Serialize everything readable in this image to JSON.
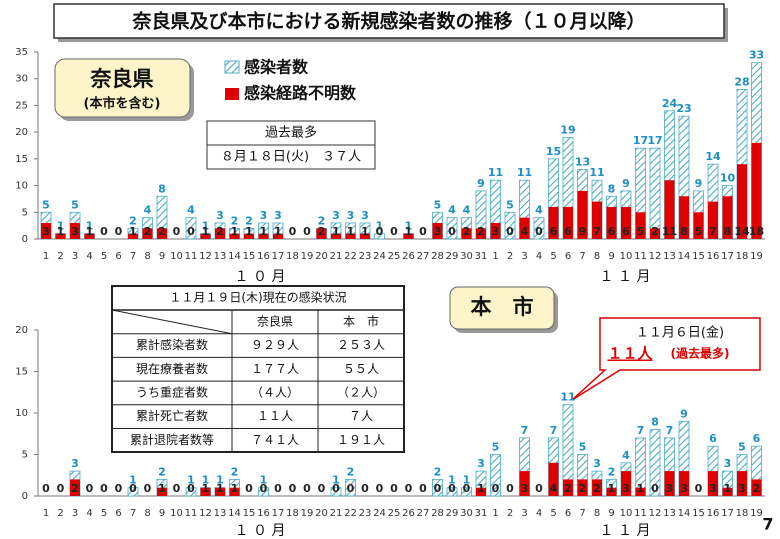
{
  "title": "奈良県及び本市における新規感染者数の推移（１０月以降）",
  "page_number": "7",
  "record_box": {
    "heading": "過去最多",
    "value": "８月１８日(火)　３７人"
  },
  "callout": {
    "date": "１１月６日(金)",
    "count": "１１人",
    "note": "(過去最多)"
  },
  "table": {
    "heading": "１１月１９日(木)現在の感染状況",
    "columns": [
      "奈良県",
      "本　市"
    ],
    "rows": [
      [
        "累計感染者数",
        "９２９人",
        "２５３人"
      ],
      [
        "現在療養者数",
        "１７７人",
        "５５人"
      ],
      [
        "うち重症者数",
        "（４人）",
        "（２人）"
      ],
      [
        "累計死亡者数",
        "１１人",
        "７人"
      ],
      [
        "累計退院者数等",
        "７４１人",
        "１９１人"
      ]
    ]
  },
  "chart_data": [
    {
      "type": "bar",
      "label": "奈良県",
      "sublabel": "(本市を含む)",
      "categories": [
        "1",
        "2",
        "3",
        "4",
        "5",
        "6",
        "7",
        "8",
        "9",
        "10",
        "11",
        "12",
        "13",
        "14",
        "15",
        "16",
        "17",
        "18",
        "19",
        "20",
        "21",
        "22",
        "23",
        "24",
        "25",
        "26",
        "27",
        "28",
        "29",
        "30",
        "31",
        "1",
        "2",
        "3",
        "4",
        "5",
        "6",
        "7",
        "8",
        "9",
        "10",
        "11",
        "12",
        "13",
        "14",
        "15",
        "16",
        "17",
        "18",
        "19"
      ],
      "months": [
        "１ ０ 月",
        "１ １ 月"
      ],
      "ylim": [
        0,
        35
      ],
      "yticks": [
        0,
        5,
        10,
        15,
        20,
        25,
        30,
        35
      ],
      "series": [
        {
          "name": "感染者数",
          "color": "#4bacc6",
          "values": [
            5,
            1,
            5,
            1,
            0,
            0,
            2,
            4,
            8,
            0,
            4,
            1,
            3,
            2,
            2,
            3,
            3,
            0,
            0,
            2,
            3,
            3,
            3,
            1,
            0,
            1,
            0,
            5,
            4,
            4,
            9,
            11,
            5,
            11,
            4,
            15,
            19,
            13,
            11,
            8,
            9,
            17,
            17,
            24,
            23,
            9,
            14,
            10,
            28,
            33
          ]
        },
        {
          "name": "感染経路不明数",
          "color": "#e00000",
          "values": [
            3,
            1,
            3,
            1,
            0,
            0,
            1,
            2,
            2,
            0,
            0,
            1,
            2,
            1,
            1,
            1,
            1,
            0,
            0,
            2,
            1,
            1,
            1,
            0,
            0,
            1,
            0,
            3,
            0,
            2,
            2,
            3,
            0,
            4,
            0,
            6,
            6,
            9,
            7,
            6,
            6,
            5,
            2,
            11,
            8,
            5,
            7,
            8,
            14,
            18
          ]
        }
      ]
    },
    {
      "type": "bar",
      "label": "本　市",
      "categories": [
        "1",
        "2",
        "3",
        "4",
        "5",
        "6",
        "7",
        "8",
        "9",
        "10",
        "11",
        "12",
        "13",
        "14",
        "15",
        "16",
        "17",
        "18",
        "19",
        "20",
        "21",
        "22",
        "23",
        "24",
        "25",
        "26",
        "27",
        "28",
        "29",
        "30",
        "31",
        "1",
        "2",
        "3",
        "4",
        "5",
        "6",
        "7",
        "8",
        "9",
        "10",
        "11",
        "12",
        "13",
        "14",
        "15",
        "16",
        "17",
        "18",
        "19"
      ],
      "months": [
        "１ ０ 月",
        "１ １ 月"
      ],
      "ylim": [
        0,
        20
      ],
      "yticks": [
        0,
        5,
        10,
        15,
        20
      ],
      "series": [
        {
          "color": "#4bacc6",
          "values": [
            0,
            0,
            3,
            0,
            0,
            0,
            1,
            0,
            2,
            0,
            1,
            1,
            1,
            2,
            0,
            1,
            0,
            0,
            0,
            0,
            1,
            2,
            0,
            0,
            0,
            0,
            0,
            2,
            1,
            1,
            3,
            5,
            0,
            7,
            0,
            7,
            11,
            5,
            3,
            2,
            4,
            7,
            8,
            7,
            9,
            0,
            6,
            3,
            5,
            6
          ]
        },
        {
          "color": "#e00000",
          "values": [
            0,
            0,
            2,
            0,
            0,
            0,
            0,
            0,
            1,
            0,
            0,
            1,
            1,
            1,
            0,
            0,
            0,
            0,
            0,
            0,
            0,
            0,
            0,
            0,
            0,
            0,
            0,
            0,
            0,
            0,
            1,
            0,
            0,
            3,
            0,
            4,
            2,
            2,
            2,
            1,
            3,
            1,
            0,
            3,
            3,
            0,
            3,
            1,
            3,
            2
          ]
        }
      ]
    }
  ]
}
